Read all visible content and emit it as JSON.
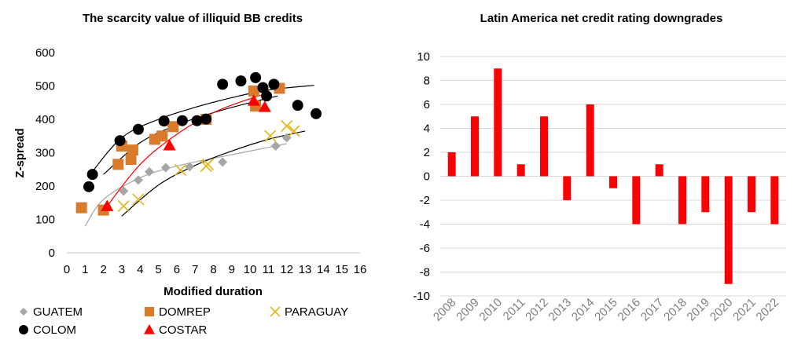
{
  "chart_data": [
    {
      "type": "scatter",
      "title": "The scarcity value  of illiquid BB credits",
      "xlabel": "Modified duration",
      "ylabel": "Z-spread",
      "xlim": [
        0,
        16
      ],
      "ylim": [
        0,
        600
      ],
      "xticks": [
        0,
        1,
        2,
        3,
        4,
        5,
        6,
        7,
        8,
        9,
        10,
        11,
        12,
        13,
        14,
        15,
        16
      ],
      "yticks": [
        0,
        100,
        200,
        300,
        400,
        500,
        600
      ],
      "grid": false,
      "legend_position": "bottom",
      "series": [
        {
          "name": "GUATEM",
          "marker": "diamond",
          "color": "#a6a6a6",
          "points": [
            [
              3.1,
              185
            ],
            [
              3.9,
              218
            ],
            [
              4.5,
              243
            ],
            [
              5.4,
              255
            ],
            [
              6.7,
              258
            ],
            [
              8.5,
              272
            ],
            [
              11.4,
              320
            ],
            [
              12.0,
              345
            ]
          ],
          "trend": [
            [
              1.0,
              80
            ],
            [
              2.0,
              160
            ],
            [
              4.0,
              225
            ],
            [
              6.0,
              260
            ],
            [
              8.0,
              283
            ],
            [
              10.0,
              305
            ],
            [
              12.0,
              327
            ]
          ]
        },
        {
          "name": "DOMREP",
          "marker": "square",
          "color": "#d97b2b",
          "points": [
            [
              0.8,
              135
            ],
            [
              2.0,
              128
            ],
            [
              2.8,
              265
            ],
            [
              3.0,
              320
            ],
            [
              3.5,
              280
            ],
            [
              3.6,
              308
            ],
            [
              4.8,
              340
            ],
            [
              5.2,
              350
            ],
            [
              5.8,
              378
            ],
            [
              7.6,
              400
            ],
            [
              10.2,
              485
            ],
            [
              10.3,
              440
            ],
            [
              11.6,
              493
            ]
          ],
          "trend": [
            [
              2.0,
              235
            ],
            [
              4.0,
              330
            ],
            [
              6.0,
              383
            ],
            [
              8.0,
              420
            ],
            [
              10.0,
              450
            ],
            [
              11.5,
              470
            ]
          ]
        },
        {
          "name": "PARAGUAY",
          "marker": "x",
          "color": "#e3b61c",
          "points": [
            [
              3.1,
              140
            ],
            [
              3.9,
              160
            ],
            [
              6.2,
              248
            ],
            [
              7.6,
              260
            ],
            [
              7.7,
              265
            ],
            [
              11.1,
              350
            ],
            [
              12.0,
              380
            ],
            [
              12.4,
              365
            ]
          ],
          "trend": [
            [
              3.0,
              110
            ],
            [
              5.0,
              203
            ],
            [
              7.0,
              262
            ],
            [
              9.0,
              305
            ],
            [
              11.0,
              340
            ],
            [
              13.0,
              365
            ]
          ]
        },
        {
          "name": "COLOM",
          "marker": "circle",
          "color": "#000000",
          "points": [
            [
              1.2,
              198
            ],
            [
              1.4,
              235
            ],
            [
              2.9,
              336
            ],
            [
              3.9,
              370
            ],
            [
              5.3,
              395
            ],
            [
              6.3,
              396
            ],
            [
              7.1,
              396
            ],
            [
              7.6,
              401
            ],
            [
              8.5,
              505
            ],
            [
              9.5,
              515
            ],
            [
              10.3,
              525
            ],
            [
              10.7,
              495
            ],
            [
              10.9,
              470
            ],
            [
              11.3,
              505
            ],
            [
              12.6,
              442
            ],
            [
              13.6,
              417
            ]
          ],
          "trend": [
            [
              1.2,
              230
            ],
            [
              3.0,
              345
            ],
            [
              5.0,
              400
            ],
            [
              7.0,
              436
            ],
            [
              9.0,
              465
            ],
            [
              11.0,
              488
            ],
            [
              13.5,
              502
            ]
          ]
        },
        {
          "name": "COSTAR",
          "marker": "triangle",
          "color": "#ff0000",
          "points": [
            [
              2.2,
              140
            ],
            [
              5.6,
              322
            ],
            [
              10.2,
              456
            ],
            [
              10.8,
              437
            ]
          ],
          "trend": [
            [
              2.2,
              140
            ],
            [
              4.0,
              265
            ],
            [
              6.0,
              355
            ],
            [
              8.0,
              420
            ],
            [
              10.0,
              462
            ],
            [
              11.0,
              478
            ]
          ]
        }
      ]
    },
    {
      "type": "bar",
      "title": "Latin America net credit rating downgrades",
      "xlabel": "",
      "ylabel": "",
      "ylim": [
        -10,
        10
      ],
      "yticks": [
        10,
        8,
        6,
        4,
        2,
        0,
        -2,
        -4,
        -6,
        -8,
        -10
      ],
      "grid": true,
      "color": "#ff0000",
      "categories": [
        "2008",
        "2009",
        "2010",
        "2011",
        "2012",
        "2013",
        "2014",
        "2015",
        "2016",
        "2017",
        "2018",
        "2019",
        "2020",
        "2021",
        "2022"
      ],
      "values": [
        2,
        5,
        9,
        1,
        5,
        -2,
        6,
        -1,
        -4,
        1,
        -4,
        -3,
        -9,
        -3,
        -4
      ]
    }
  ]
}
